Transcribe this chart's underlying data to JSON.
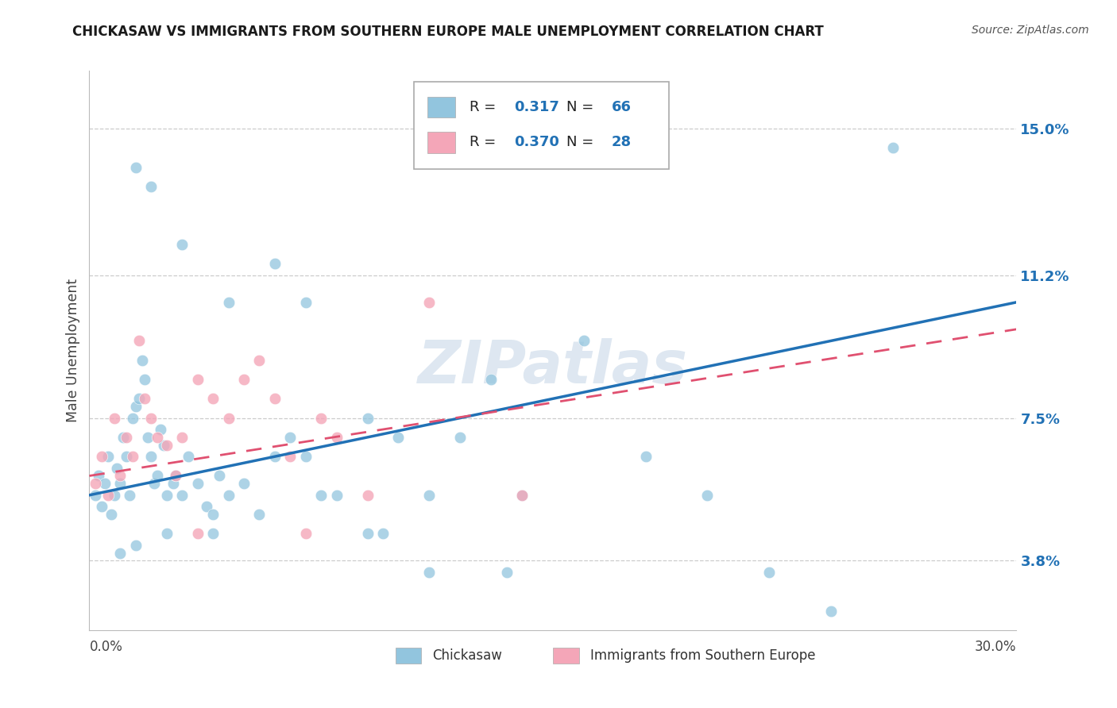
{
  "title": "CHICKASAW VS IMMIGRANTS FROM SOUTHERN EUROPE MALE UNEMPLOYMENT CORRELATION CHART",
  "source": "Source: ZipAtlas.com",
  "ylabel": "Male Unemployment",
  "yticks": [
    3.8,
    7.5,
    11.2,
    15.0
  ],
  "ytick_labels": [
    "3.8%",
    "7.5%",
    "11.2%",
    "15.0%"
  ],
  "xmin": 0.0,
  "xmax": 30.0,
  "ymin": 2.0,
  "ymax": 16.5,
  "legend1_r": "0.317",
  "legend1_n": "66",
  "legend2_r": "0.370",
  "legend2_n": "28",
  "legend_label1": "Chickasaw",
  "legend_label2": "Immigrants from Southern Europe",
  "blue_color": "#92c5de",
  "pink_color": "#f4a6b8",
  "line_blue": "#2171b5",
  "line_pink": "#e05070",
  "watermark": "ZIPatlas",
  "r_n_color": "#2171b5",
  "title_color": "#1a1a1a",
  "source_color": "#555555",
  "blue_x0": 0.0,
  "blue_y0": 5.5,
  "blue_x1": 30.0,
  "blue_y1": 10.5,
  "pink_x0": 0.0,
  "pink_y0": 6.0,
  "pink_x1": 30.0,
  "pink_y1": 9.8,
  "blue_scatter_x": [
    0.2,
    0.3,
    0.4,
    0.5,
    0.6,
    0.7,
    0.8,
    0.9,
    1.0,
    1.1,
    1.2,
    1.3,
    1.4,
    1.5,
    1.6,
    1.7,
    1.8,
    1.9,
    2.0,
    2.1,
    2.2,
    2.3,
    2.4,
    2.5,
    2.7,
    2.8,
    3.0,
    3.2,
    3.5,
    3.8,
    4.0,
    4.2,
    4.5,
    5.0,
    5.5,
    6.0,
    6.5,
    7.0,
    7.5,
    8.0,
    9.0,
    9.5,
    10.0,
    11.0,
    12.0,
    13.0,
    14.0,
    16.0,
    18.0,
    20.0,
    22.0,
    24.0,
    26.0,
    1.5,
    2.0,
    3.0,
    4.5,
    6.0,
    7.0,
    9.0,
    11.0,
    13.5,
    1.0,
    1.5,
    2.5,
    4.0
  ],
  "blue_scatter_y": [
    5.5,
    6.0,
    5.2,
    5.8,
    6.5,
    5.0,
    5.5,
    6.2,
    5.8,
    7.0,
    6.5,
    5.5,
    7.5,
    7.8,
    8.0,
    9.0,
    8.5,
    7.0,
    6.5,
    5.8,
    6.0,
    7.2,
    6.8,
    5.5,
    5.8,
    6.0,
    5.5,
    6.5,
    5.8,
    5.2,
    5.0,
    6.0,
    5.5,
    5.8,
    5.0,
    6.5,
    7.0,
    6.5,
    5.5,
    5.5,
    7.5,
    4.5,
    7.0,
    5.5,
    7.0,
    8.5,
    5.5,
    9.5,
    6.5,
    5.5,
    3.5,
    2.5,
    14.5,
    14.0,
    13.5,
    12.0,
    10.5,
    11.5,
    10.5,
    4.5,
    3.5,
    3.5,
    4.0,
    4.2,
    4.5,
    4.5
  ],
  "pink_scatter_x": [
    0.2,
    0.4,
    0.6,
    0.8,
    1.0,
    1.2,
    1.4,
    1.6,
    1.8,
    2.0,
    2.2,
    2.5,
    2.8,
    3.0,
    3.5,
    4.0,
    4.5,
    5.0,
    5.5,
    6.0,
    6.5,
    7.5,
    8.0,
    9.0,
    11.0,
    14.0,
    3.5,
    7.0
  ],
  "pink_scatter_y": [
    5.8,
    6.5,
    5.5,
    7.5,
    6.0,
    7.0,
    6.5,
    9.5,
    8.0,
    7.5,
    7.0,
    6.8,
    6.0,
    7.0,
    8.5,
    8.0,
    7.5,
    8.5,
    9.0,
    8.0,
    6.5,
    7.5,
    7.0,
    5.5,
    10.5,
    5.5,
    4.5,
    4.5
  ]
}
